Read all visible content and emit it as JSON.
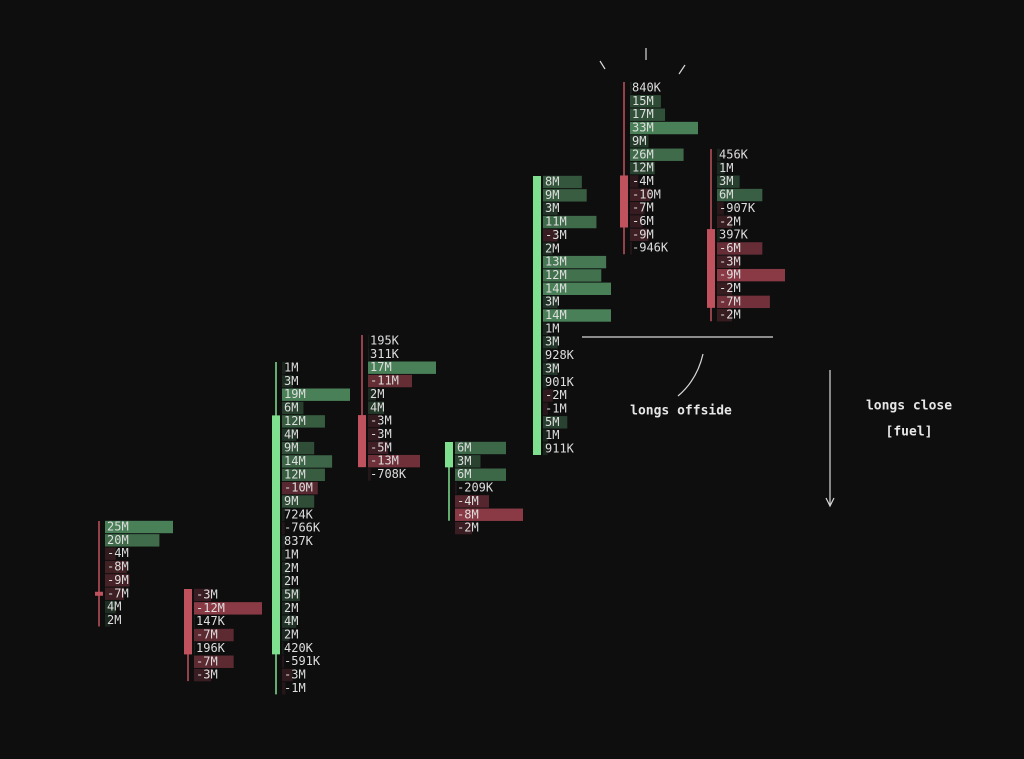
{
  "chart_data": {
    "type": "footprint",
    "annotations": [
      "longs offside",
      "longs close",
      "[fuel]"
    ],
    "candles": [
      {
        "color": "#c0525e",
        "body_rows": [
          5,
          5
        ],
        "wick_rows": [
          0,
          7
        ],
        "values": [
          25000000,
          20000000,
          -4000000,
          -8000000,
          -9000000,
          -7000000,
          4000000,
          2000000
        ],
        "value_labels": [
          "25M",
          "20M",
          "-4M",
          "-8M",
          "-9M",
          "-7M",
          "4M",
          "2M"
        ]
      },
      {
        "color": "#c0525e",
        "body_rows": [
          0,
          4
        ],
        "wick_rows": [
          0,
          6
        ],
        "values": [
          -3000000,
          -12000000,
          147000,
          -7000000,
          196000,
          -7000000,
          -3000000
        ],
        "value_labels": [
          "-3M",
          "-12M",
          "147K",
          "-7M",
          "196K",
          "-7M",
          "-3M"
        ]
      },
      {
        "color": "#7ee08f",
        "body_rows": [
          4,
          21
        ],
        "wick_rows": [
          0,
          24
        ],
        "values": [
          1000000,
          3000000,
          19000000,
          6000000,
          12000000,
          4000000,
          9000000,
          14000000,
          12000000,
          -10000000,
          9000000,
          724000,
          -766000,
          837000,
          1000000,
          2000000,
          2000000,
          5000000,
          2000000,
          4000000,
          2000000,
          420000,
          -591000,
          -3000000,
          -1000000
        ],
        "value_labels": [
          "1M",
          "3M",
          "19M",
          "6M",
          "12M",
          "4M",
          "9M",
          "14M",
          "12M",
          "-10M",
          "9M",
          "724K",
          "-766K",
          "837K",
          "1M",
          "2M",
          "2M",
          "5M",
          "2M",
          "4M",
          "2M",
          "420K",
          "-591K",
          "-3M",
          "-1M"
        ]
      },
      {
        "color": "#c0525e",
        "body_rows": [
          6,
          9
        ],
        "wick_rows": [
          0,
          9
        ],
        "values": [
          195000,
          311000,
          17000000,
          -11000000,
          2000000,
          4000000,
          -3000000,
          -3000000,
          -5000000,
          -13000000,
          -708000
        ],
        "value_labels": [
          "195K",
          "311K",
          "17M",
          "-11M",
          "2M",
          "4M",
          "-3M",
          "-3M",
          "-5M",
          "-13M",
          "-708K"
        ]
      },
      {
        "color": "#7ee08f",
        "body_rows": [
          0,
          1
        ],
        "wick_rows": [
          0,
          5
        ],
        "values": [
          6000000,
          3000000,
          6000000,
          -209000,
          -4000000,
          -8000000,
          -2000000
        ],
        "value_labels": [
          "6M",
          "3M",
          "6M",
          "-209K",
          "-4M",
          "-8M",
          "-2M"
        ]
      },
      {
        "color": "#7ee08f",
        "body_rows": [
          0,
          20
        ],
        "wick_rows": [
          0,
          20
        ],
        "values": [
          8000000,
          9000000,
          3000000,
          11000000,
          -3000000,
          2000000,
          13000000,
          12000000,
          14000000,
          3000000,
          14000000,
          1000000,
          3000000,
          928000,
          3000000,
          901000,
          -2000000,
          -1000000,
          5000000,
          1000000,
          911000
        ],
        "value_labels": [
          "8M",
          "9M",
          "3M",
          "11M",
          "-3M",
          "2M",
          "13M",
          "12M",
          "14M",
          "3M",
          "14M",
          "1M",
          "3M",
          "928K",
          "3M",
          "901K",
          "-2M",
          "-1M",
          "5M",
          "1M",
          "911K"
        ]
      },
      {
        "color": "#c0525e",
        "body_rows": [
          7,
          10
        ],
        "wick_rows": [
          0,
          12
        ],
        "values": [
          840000,
          15000000,
          17000000,
          33000000,
          9000000,
          26000000,
          12000000,
          -4000000,
          -10000000,
          -7000000,
          -6000000,
          -9000000,
          -946000
        ],
        "value_labels": [
          "840K",
          "15M",
          "17M",
          "33M",
          "9M",
          "26M",
          "12M",
          "-4M",
          "-10M",
          "-7M",
          "-6M",
          "-9M",
          "-946K"
        ]
      },
      {
        "color": "#c0525e",
        "body_rows": [
          6,
          11
        ],
        "wick_rows": [
          0,
          12
        ],
        "values": [
          456000,
          1000000,
          3000000,
          6000000,
          -907000,
          -2000000,
          397000,
          -6000000,
          -3000000,
          -9000000,
          -2000000,
          -7000000,
          -2000000
        ],
        "value_labels": [
          "456K",
          "1M",
          "3M",
          "6M",
          "-907K",
          "-2M",
          "397K",
          "-6M",
          "-3M",
          "-9M",
          "-2M",
          "-7M",
          "-2M"
        ]
      }
    ]
  }
}
